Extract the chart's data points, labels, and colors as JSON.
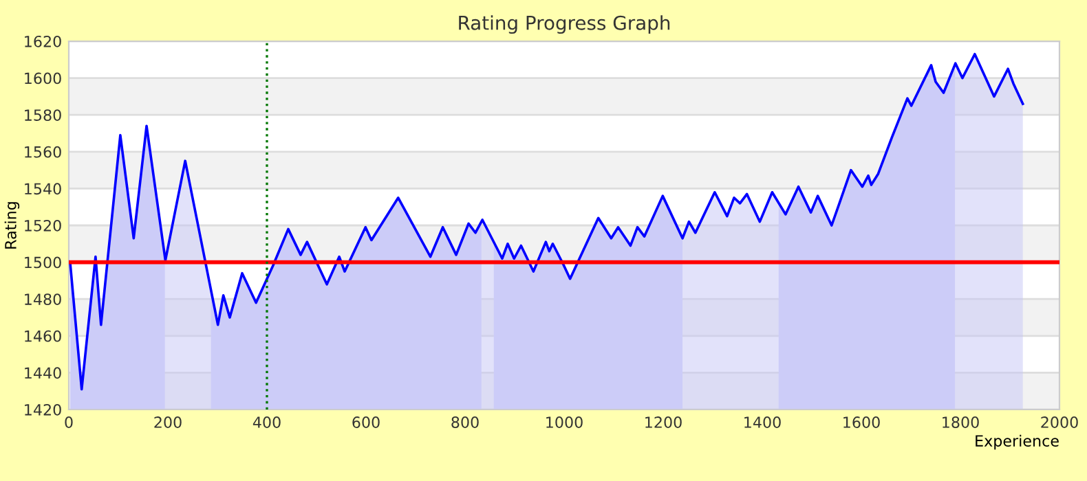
{
  "chart_data": {
    "type": "area",
    "title": "Rating Progress Graph",
    "xlabel": "Experience",
    "ylabel": "Rating",
    "xlim": [
      0,
      2000
    ],
    "xticks": [
      0,
      200,
      400,
      600,
      800,
      1000,
      1200,
      1400,
      1600,
      1800,
      2000
    ],
    "ylim": [
      1420,
      1620
    ],
    "yticks": [
      1420,
      1440,
      1460,
      1480,
      1500,
      1520,
      1540,
      1560,
      1580,
      1600,
      1620
    ],
    "grid": "y",
    "legend": false,
    "marker": "none",
    "line_style": "solid",
    "series": [
      {
        "color": "#0000ff",
        "x": [
          3,
          26,
          54,
          65,
          104,
          131,
          157,
          195,
          235,
          301,
          312,
          325,
          350,
          378,
          412,
          443,
          468,
          481,
          521,
          546,
          557,
          599,
          611,
          665,
          730,
          755,
          782,
          807,
          821,
          835,
          875,
          886,
          899,
          913,
          938,
          963,
          970,
          977,
          998,
          1012,
          1069,
          1095,
          1109,
          1134,
          1148,
          1162,
          1199,
          1239,
          1252,
          1265,
          1304,
          1329,
          1343,
          1355,
          1369,
          1395,
          1420,
          1447,
          1473,
          1498,
          1512,
          1540,
          1557,
          1579,
          1602,
          1614,
          1620,
          1634,
          1662,
          1693,
          1701,
          1741,
          1750,
          1766,
          1790,
          1804,
          1829,
          1868,
          1896,
          1907,
          1926
        ],
        "values": [
          1499,
          1431,
          1503,
          1466,
          1569,
          1513,
          1574,
          1501,
          1555,
          1466,
          1482,
          1470,
          1494,
          1478,
          1498,
          1518,
          1504,
          1511,
          1488,
          1503,
          1495,
          1519,
          1512,
          1535,
          1503,
          1519,
          1504,
          1521,
          1516,
          1523,
          1502,
          1510,
          1502,
          1509,
          1495,
          1511,
          1506,
          1510,
          1499,
          1491,
          1524,
          1513,
          1519,
          1509,
          1519,
          1514,
          1536,
          1513,
          1522,
          1516,
          1538,
          1525,
          1535,
          1532,
          1537,
          1522,
          1538,
          1526,
          1541,
          1527,
          1536,
          1520,
          1533,
          1550,
          1541,
          1547,
          1542,
          1548,
          1568,
          1589,
          1585,
          1607,
          1598,
          1592,
          1608,
          1600,
          1613,
          1590,
          1605,
          1597,
          1586
        ]
      }
    ],
    "ref_lines": [
      {
        "axis": "y",
        "value": 1500,
        "color": "#ff0000",
        "line_style": "solid"
      },
      {
        "axis": "x",
        "value": 400,
        "color": "#007700",
        "line_style": "dotted"
      }
    ],
    "bands": [
      {
        "axis": "x",
        "from": 0,
        "to": 194,
        "color": "#d3d3fb"
      },
      {
        "axis": "x",
        "from": 287,
        "to": 833,
        "color": "#d3d3fb"
      },
      {
        "axis": "x",
        "from": 858,
        "to": 1239,
        "color": "#d3d3fb"
      },
      {
        "axis": "x",
        "from": 1433,
        "to": 1789,
        "color": "#d3d3fb"
      }
    ]
  }
}
